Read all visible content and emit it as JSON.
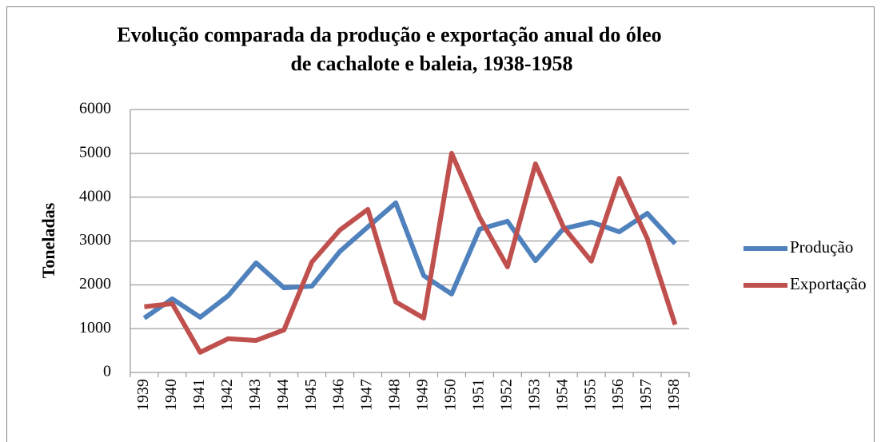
{
  "chart_data": {
    "type": "line",
    "title": [
      "Evolução comparada da produção e exportação anual do óleo",
      "de cachalote e baleia, 1938-1958"
    ],
    "ylabel": "Toneladas",
    "categories": [
      "1939",
      "1940",
      "1941",
      "1942",
      "1943",
      "1944",
      "1945",
      "1946",
      "1947",
      "1948",
      "1949",
      "1950",
      "1951",
      "1952",
      "1953",
      "1954",
      "1955",
      "1956",
      "1957",
      "1958"
    ],
    "series": [
      {
        "name": "Produção",
        "color": "#4f81bd",
        "values": [
          1240,
          1680,
          1260,
          1750,
          2500,
          1930,
          1970,
          2760,
          3320,
          3870,
          2210,
          1790,
          3270,
          3450,
          2550,
          3280,
          3430,
          3210,
          3630,
          2940
        ]
      },
      {
        "name": "Exportação",
        "color": "#c0504d",
        "values": [
          1500,
          1570,
          460,
          770,
          730,
          970,
          2520,
          3250,
          3720,
          1610,
          1240,
          5000,
          3540,
          2410,
          4760,
          3320,
          2540,
          4430,
          3060,
          1090
        ]
      }
    ],
    "ylim": [
      0,
      6000
    ],
    "yticks": [
      0,
      1000,
      2000,
      3000,
      4000,
      5000,
      6000
    ],
    "grid": true,
    "legend": "right"
  }
}
